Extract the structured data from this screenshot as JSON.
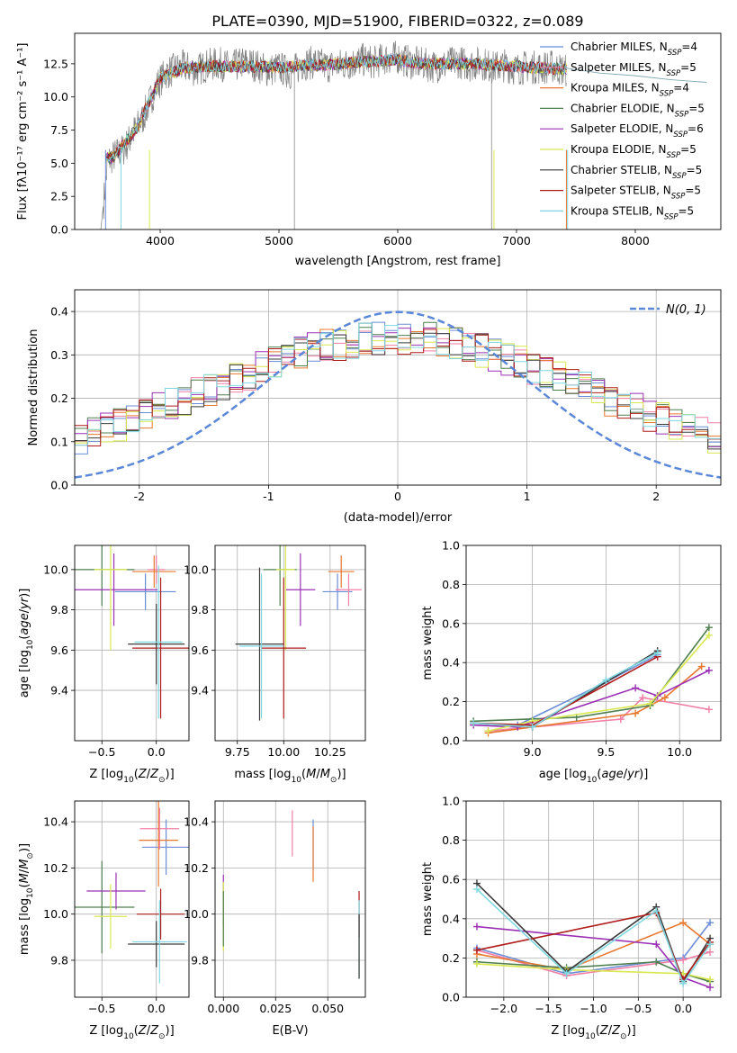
{
  "figure": {
    "title": "PLATE=0390, MJD=51900, FIBERID=0322, z=0.089"
  },
  "chart_data": [
    {
      "type": "line",
      "panel": "spectrum",
      "xlabel": "wavelength [Angstrom, rest frame]",
      "ylabel": "Flux [fλ10⁻¹⁷ erg cm⁻² s⁻¹ A⁻¹]",
      "xlim": [
        3280,
        8720
      ],
      "ylim": [
        0,
        14.8
      ],
      "xticks": [
        4000,
        5000,
        6000,
        7000,
        8000
      ],
      "yticks": [
        0.0,
        2.5,
        5.0,
        7.5,
        10.0,
        12.5
      ],
      "ytick_labels": [
        "0.0",
        "2.5",
        "5.0",
        "7.5",
        "10.0",
        "12.5"
      ],
      "legend": [
        {
          "name": "Chabrier MILES, N$SSP$=4",
          "base": "Chabrier MILES, N",
          "sub": "SSP",
          "tail": "=4",
          "color": "#6b8dd6"
        },
        {
          "name": "Salpeter MILES, N$SSP$=5",
          "base": "Salpeter MILES, N",
          "sub": "SSP",
          "tail": "=5",
          "color": "#f27fa6"
        },
        {
          "name": "Kroupa MILES, N$SSP$=4",
          "base": "Kroupa MILES, N",
          "sub": "SSP",
          "tail": "=4",
          "color": "#e8772e"
        },
        {
          "name": "Chabrier ELODIE, N$SSP$=5",
          "base": "Chabrier ELODIE, N",
          "sub": "SSP",
          "tail": "=5",
          "color": "#4f7f4f"
        },
        {
          "name": "Salpeter ELODIE, N$SSP$=6",
          "base": "Salpeter ELODIE, N",
          "sub": "SSP",
          "tail": "=6",
          "color": "#9b30b5"
        },
        {
          "name": "Kroupa ELODIE, N$SSP$=5",
          "base": "Kroupa ELODIE, N",
          "sub": "SSP",
          "tail": "=5",
          "color": "#d9e84f"
        },
        {
          "name": "Chabrier STELIB, N$SSP$=5",
          "base": "Chabrier STELIB, N",
          "sub": "SSP",
          "tail": "=5",
          "color": "#3a3a3a"
        },
        {
          "name": "Salpeter STELIB, N$SSP$=5",
          "base": "Salpeter STELIB, N",
          "sub": "SSP",
          "tail": "=5",
          "color": "#b01c1c"
        },
        {
          "name": "Kroupa STELIB, N$SSP$=5",
          "base": "Kroupa STELIB, N",
          "sub": "SSP",
          "tail": "=5",
          "color": "#7fd8e0"
        }
      ],
      "data_color": "#808080",
      "data_x": [
        3500,
        3560,
        3620,
        3700,
        3780,
        3850,
        3920,
        3980,
        4050,
        4100,
        4200,
        4300,
        4400,
        4500,
        4600,
        4700,
        4800,
        4900,
        5000,
        5100,
        5200,
        5300,
        5400,
        5500,
        5600,
        5700,
        5800,
        5900,
        6000,
        6100,
        6200,
        6300,
        6400,
        6500,
        6600,
        6700,
        6800,
        6900,
        7000,
        7100,
        7200,
        7300,
        7400
      ],
      "data_y": [
        0,
        5.2,
        5.6,
        6.1,
        7.4,
        8.3,
        9.8,
        11.0,
        11.8,
        12.0,
        12.3,
        12.0,
        12.4,
        12.5,
        12.2,
        12.6,
        12.4,
        12.0,
        12.2,
        11.8,
        12.5,
        12.6,
        12.3,
        12.4,
        12.5,
        12.8,
        12.6,
        12.9,
        13.0,
        12.6,
        12.5,
        12.3,
        12.4,
        12.7,
        12.4,
        12.6,
        12.2,
        12.4,
        12.1,
        12.3,
        12.2,
        12.3,
        12.0
      ],
      "model_x": [
        3600,
        3800,
        4000,
        4200,
        4400,
        4600,
        4800,
        5000,
        5200,
        5400,
        5600,
        5800,
        6000,
        6200,
        6400,
        6600,
        6800,
        7000,
        7200,
        7400
      ],
      "model_y": [
        5.4,
        7.6,
        11.4,
        12.2,
        12.3,
        12.3,
        12.3,
        12.2,
        12.4,
        12.4,
        12.6,
        12.7,
        12.8,
        12.5,
        12.5,
        12.5,
        12.4,
        12.3,
        12.2,
        12.1
      ],
      "model_tail_x": [
        7400,
        7700,
        8000,
        8300,
        8600
      ],
      "model_tail_y": [
        12.2,
        11.8,
        11.6,
        11.3,
        11.1
      ]
    },
    {
      "type": "bar",
      "panel": "residual_histogram",
      "xlabel": "(data-model)/error",
      "ylabel": "Normed distribution",
      "xlim": [
        -2.5,
        2.5
      ],
      "ylim": [
        0,
        0.45
      ],
      "xticks": [
        -2,
        -1,
        0,
        1,
        2
      ],
      "yticks": [
        0.0,
        0.1,
        0.2,
        0.3,
        0.4
      ],
      "ytick_labels": [
        "0.0",
        "0.1",
        "0.2",
        "0.3",
        "0.4"
      ],
      "legend_label": "N(0, 1)",
      "curve_color": "#5b87d8",
      "bin_edges": [
        -2.5,
        -2.4,
        -2.3,
        -2.2,
        -2.1,
        -2.0,
        -1.9,
        -1.8,
        -1.7,
        -1.6,
        -1.5,
        -1.4,
        -1.3,
        -1.2,
        -1.1,
        -1.0,
        -0.9,
        -0.8,
        -0.7,
        -0.6,
        -0.5,
        -0.4,
        -0.3,
        -0.2,
        -0.1,
        0.0,
        0.1,
        0.2,
        0.3,
        0.4,
        0.5,
        0.6,
        0.7,
        0.8,
        0.9,
        1.0,
        1.1,
        1.2,
        1.3,
        1.4,
        1.5,
        1.6,
        1.7,
        1.8,
        1.9,
        2.0,
        2.1,
        2.2,
        2.3,
        2.4,
        2.5
      ]
    },
    {
      "type": "scatter",
      "panel": "Z_vs_age",
      "xlabel": "Z [log10(Z/Z⊙)]",
      "ylabel": "age [log10(age/yr)]",
      "xlim": [
        -0.75,
        0.3
      ],
      "ylim": [
        9.15,
        10.12
      ],
      "xticks": [
        -0.5,
        0.0
      ],
      "xtick_labels": [
        "−0.5",
        "0.0"
      ],
      "yticks": [
        9.4,
        9.6,
        9.8,
        10.0
      ],
      "ytick_labels": [
        "9.4",
        "9.6",
        "9.8",
        "10.0"
      ],
      "points": [
        {
          "x": -0.1,
          "y": 9.89,
          "xerr": 0.28,
          "yerr": 0.09,
          "color": "#6b8dd6"
        },
        {
          "x": 0.0,
          "y": 10.0,
          "xerr": 0.08,
          "yerr": 0.07,
          "color": "#f27fa6"
        },
        {
          "x": -0.02,
          "y": 9.99,
          "xerr": 0.2,
          "yerr": 0.08,
          "color": "#e8772e"
        },
        {
          "x": -0.5,
          "y": 10.0,
          "xerr": 0.3,
          "yerr": 0.18,
          "color": "#4f7f4f"
        },
        {
          "x": -0.39,
          "y": 9.9,
          "xerr": 0.4,
          "yerr": 0.18,
          "color": "#9b30b5"
        },
        {
          "x": -0.42,
          "y": 10.0,
          "xerr": 0.15,
          "yerr": 0.4,
          "color": "#d9e84f"
        },
        {
          "x": 0.0,
          "y": 9.63,
          "xerr": 0.26,
          "yerr": 0.2,
          "color": "#3a3a3a"
        },
        {
          "x": 0.04,
          "y": 9.61,
          "xerr": 0.26,
          "yerr": 0.35,
          "color": "#b01c1c"
        },
        {
          "x": 0.02,
          "y": 9.64,
          "xerr": 0.22,
          "yerr": 0.38,
          "color": "#7fd8e0"
        }
      ]
    },
    {
      "type": "scatter",
      "panel": "mass_vs_age",
      "xlabel": "mass [log10(M/M⊙)]",
      "ylabel": "",
      "xlim": [
        9.63,
        10.44
      ],
      "ylim": [
        9.15,
        10.12
      ],
      "xticks": [
        9.75,
        10.0,
        10.25
      ],
      "xtick_labels": [
        "9.75",
        "10.00",
        "10.25"
      ],
      "yticks": [
        9.4,
        9.6,
        9.8,
        10.0
      ],
      "ytick_labels": [
        "9.4",
        "9.6",
        "9.8",
        "10.0"
      ],
      "points": [
        {
          "x": 10.29,
          "y": 9.89,
          "xerr": 0.08,
          "yerr": 0.09,
          "color": "#6b8dd6"
        },
        {
          "x": 10.35,
          "y": 9.9,
          "xerr": 0.07,
          "yerr": 0.08,
          "color": "#f27fa6"
        },
        {
          "x": 10.31,
          "y": 9.99,
          "xerr": 0.07,
          "yerr": 0.08,
          "color": "#e8772e"
        },
        {
          "x": 9.98,
          "y": 10.0,
          "xerr": 0.09,
          "yerr": 0.18,
          "color": "#4f7f4f"
        },
        {
          "x": 10.09,
          "y": 9.9,
          "xerr": 0.08,
          "yerr": 0.18,
          "color": "#9b30b5"
        },
        {
          "x": 10.01,
          "y": 10.0,
          "xerr": 0.05,
          "yerr": 0.4,
          "color": "#d9e84f"
        },
        {
          "x": 9.87,
          "y": 9.63,
          "xerr": 0.13,
          "yerr": 0.38,
          "color": "#3a3a3a"
        },
        {
          "x": 10.0,
          "y": 9.61,
          "xerr": 0.12,
          "yerr": 0.35,
          "color": "#b01c1c"
        },
        {
          "x": 9.88,
          "y": 9.62,
          "xerr": 0.12,
          "yerr": 0.36,
          "color": "#7fd8e0"
        }
      ]
    },
    {
      "type": "line",
      "panel": "age_vs_massweight",
      "xlabel": "age [log10(age/yr)]",
      "ylabel": "mass weight",
      "xlim": [
        8.55,
        10.28
      ],
      "ylim": [
        0,
        1.0
      ],
      "xticks": [
        9.0,
        9.5,
        10.0
      ],
      "xtick_labels": [
        "9.0",
        "9.5",
        "10.0"
      ],
      "yticks": [
        0.0,
        0.2,
        0.4,
        0.6,
        0.8,
        1.0
      ],
      "ytick_labels": [
        "0.0",
        "0.2",
        "0.4",
        "0.6",
        "0.8",
        "1.0"
      ],
      "series": [
        {
          "color": "#6b8dd6",
          "x": [
            8.6,
            8.9,
            9.5,
            9.85
          ],
          "y": [
            0.09,
            0.08,
            0.3,
            0.44
          ]
        },
        {
          "color": "#f27fa6",
          "x": [
            8.7,
            9.6,
            9.75,
            10.2
          ],
          "y": [
            0.05,
            0.11,
            0.22,
            0.16
          ]
        },
        {
          "color": "#e8772e",
          "x": [
            8.7,
            9.0,
            9.7,
            9.9,
            10.15
          ],
          "y": [
            0.04,
            0.07,
            0.14,
            0.22,
            0.38
          ]
        },
        {
          "color": "#4f7f4f",
          "x": [
            8.6,
            9.3,
            9.8,
            10.2
          ],
          "y": [
            0.1,
            0.12,
            0.18,
            0.58
          ]
        },
        {
          "color": "#9b30b5",
          "x": [
            8.6,
            8.9,
            9.7,
            9.85,
            10.2
          ],
          "y": [
            0.08,
            0.07,
            0.27,
            0.23,
            0.36
          ]
        },
        {
          "color": "#d9e84f",
          "x": [
            8.7,
            9.0,
            9.8,
            10.2
          ],
          "y": [
            0.05,
            0.1,
            0.19,
            0.54
          ]
        },
        {
          "color": "#3a3a3a",
          "x": [
            8.6,
            9.0,
            9.85
          ],
          "y": [
            0.09,
            0.07,
            0.46
          ]
        },
        {
          "color": "#b01c1c",
          "x": [
            8.6,
            9.0,
            9.85
          ],
          "y": [
            0.09,
            0.08,
            0.43
          ]
        },
        {
          "color": "#7fd8e0",
          "x": [
            8.6,
            9.0,
            9.5,
            9.85
          ],
          "y": [
            0.09,
            0.07,
            0.31,
            0.45
          ]
        }
      ]
    },
    {
      "type": "scatter",
      "panel": "Z_vs_mass",
      "xlabel": "Z [log10(Z/Z⊙)]",
      "ylabel": "mass [log10(M/M⊙)]",
      "xlim": [
        -0.75,
        0.3
      ],
      "ylim": [
        9.64,
        10.49
      ],
      "xticks": [
        -0.5,
        0.0
      ],
      "xtick_labels": [
        "−0.5",
        "0.0"
      ],
      "yticks": [
        9.8,
        10.0,
        10.2,
        10.4
      ],
      "ytick_labels": [
        "9.8",
        "10.0",
        "10.2",
        "10.4"
      ],
      "points": [
        {
          "x": 0.09,
          "y": 10.29,
          "xerr": 0.22,
          "yerr": 0.12,
          "color": "#6b8dd6"
        },
        {
          "x": 0.03,
          "y": 10.37,
          "xerr": 0.18,
          "yerr": 0.09,
          "color": "#f27fa6"
        },
        {
          "x": 0.02,
          "y": 10.32,
          "xerr": 0.18,
          "yerr": 0.2,
          "color": "#e8772e"
        },
        {
          "x": -0.5,
          "y": 10.03,
          "xerr": 0.3,
          "yerr": 0.2,
          "color": "#4f7f4f"
        },
        {
          "x": -0.37,
          "y": 10.1,
          "xerr": 0.27,
          "yerr": 0.08,
          "color": "#9b30b5"
        },
        {
          "x": -0.42,
          "y": 9.99,
          "xerr": 0.15,
          "yerr": 0.14,
          "color": "#d9e84f"
        },
        {
          "x": 0.0,
          "y": 9.87,
          "xerr": 0.26,
          "yerr": 0.1,
          "color": "#3a3a3a"
        },
        {
          "x": 0.04,
          "y": 10.0,
          "xerr": 0.22,
          "yerr": 0.11,
          "color": "#b01c1c"
        },
        {
          "x": 0.03,
          "y": 9.88,
          "xerr": 0.25,
          "yerr": 0.18,
          "color": "#7fd8e0"
        }
      ]
    },
    {
      "type": "scatter",
      "panel": "EBV_vs_mass",
      "xlabel": "E(B-V)",
      "ylabel": "",
      "xlim": [
        -0.004,
        0.068
      ],
      "ylim": [
        9.64,
        10.49
      ],
      "xticks": [
        0.0,
        0.025,
        0.05
      ],
      "xtick_labels": [
        "0.000",
        "0.025",
        "0.050"
      ],
      "yticks": [
        9.8,
        10.0,
        10.2,
        10.4
      ],
      "ytick_labels": [
        "9.8",
        "10.0",
        "10.2",
        "10.4"
      ],
      "points": [
        {
          "x": 0.0,
          "y": 10.06,
          "yerr": 0.11,
          "color": "#9b30b5"
        },
        {
          "x": 0.0,
          "y": 9.99,
          "yerr": 0.15,
          "color": "#d9e84f"
        },
        {
          "x": 0.0,
          "y": 9.98,
          "yerr": 0.12,
          "color": "#4f7f4f"
        },
        {
          "x": 0.033,
          "y": 10.35,
          "yerr": 0.1,
          "color": "#f27fa6"
        },
        {
          "x": 0.043,
          "y": 10.3,
          "yerr": 0.11,
          "color": "#6b8dd6"
        },
        {
          "x": 0.043,
          "y": 10.26,
          "yerr": 0.12,
          "color": "#e8772e"
        },
        {
          "x": 0.065,
          "y": 10.0,
          "yerr": 0.1,
          "color": "#b01c1c"
        },
        {
          "x": 0.065,
          "y": 9.89,
          "yerr": 0.17,
          "color": "#7fd8e0"
        },
        {
          "x": 0.065,
          "y": 9.86,
          "yerr": 0.14,
          "color": "#3a3a3a"
        }
      ]
    },
    {
      "type": "line",
      "panel": "Z_vs_massweight",
      "xlabel": "Z [log10(Z/Z⊙)]",
      "ylabel": "mass weight",
      "xlim": [
        -2.42,
        0.42
      ],
      "ylim": [
        0,
        1.0
      ],
      "xticks": [
        -2.0,
        -1.5,
        -1.0,
        -0.5,
        0.0
      ],
      "xtick_labels": [
        "−2.0",
        "−1.5",
        "−1.0",
        "−0.5",
        "0.0"
      ],
      "yticks": [
        0.0,
        0.2,
        0.4,
        0.6,
        0.8,
        1.0
      ],
      "ytick_labels": [
        "0.0",
        "0.2",
        "0.4",
        "0.6",
        "0.8",
        "1.0"
      ],
      "series": [
        {
          "color": "#6b8dd6",
          "x": [
            -2.3,
            -1.3,
            0.0,
            0.3
          ],
          "y": [
            0.25,
            0.12,
            0.2,
            0.38
          ]
        },
        {
          "color": "#f27fa6",
          "x": [
            -2.3,
            -1.3,
            0.0,
            0.3
          ],
          "y": [
            0.24,
            0.11,
            0.19,
            0.23
          ]
        },
        {
          "color": "#e8772e",
          "x": [
            -2.3,
            -1.3,
            0.0,
            0.3
          ],
          "y": [
            0.22,
            0.14,
            0.38,
            0.27
          ]
        },
        {
          "color": "#4f7f4f",
          "x": [
            -2.3,
            -1.3,
            -0.3,
            0.0,
            0.3
          ],
          "y": [
            0.18,
            0.15,
            0.18,
            0.12,
            0.08
          ]
        },
        {
          "color": "#9b30b5",
          "x": [
            -2.3,
            -0.3,
            0.0,
            0.3
          ],
          "y": [
            0.36,
            0.27,
            0.1,
            0.05
          ]
        },
        {
          "color": "#d9e84f",
          "x": [
            -2.3,
            -1.3,
            0.0,
            0.3
          ],
          "y": [
            0.17,
            0.14,
            0.12,
            0.09
          ]
        },
        {
          "color": "#3a3a3a",
          "x": [
            -2.3,
            -1.3,
            -0.3,
            0.0,
            0.3
          ],
          "y": [
            0.58,
            0.13,
            0.46,
            0.08,
            0.3
          ]
        },
        {
          "color": "#b01c1c",
          "x": [
            -2.3,
            -0.3,
            0.0,
            0.3
          ],
          "y": [
            0.24,
            0.43,
            0.09,
            0.28
          ]
        },
        {
          "color": "#7fd8e0",
          "x": [
            -2.3,
            -1.3,
            -0.3,
            0.0,
            0.3
          ],
          "y": [
            0.55,
            0.12,
            0.44,
            0.07,
            0.27
          ]
        }
      ]
    }
  ]
}
